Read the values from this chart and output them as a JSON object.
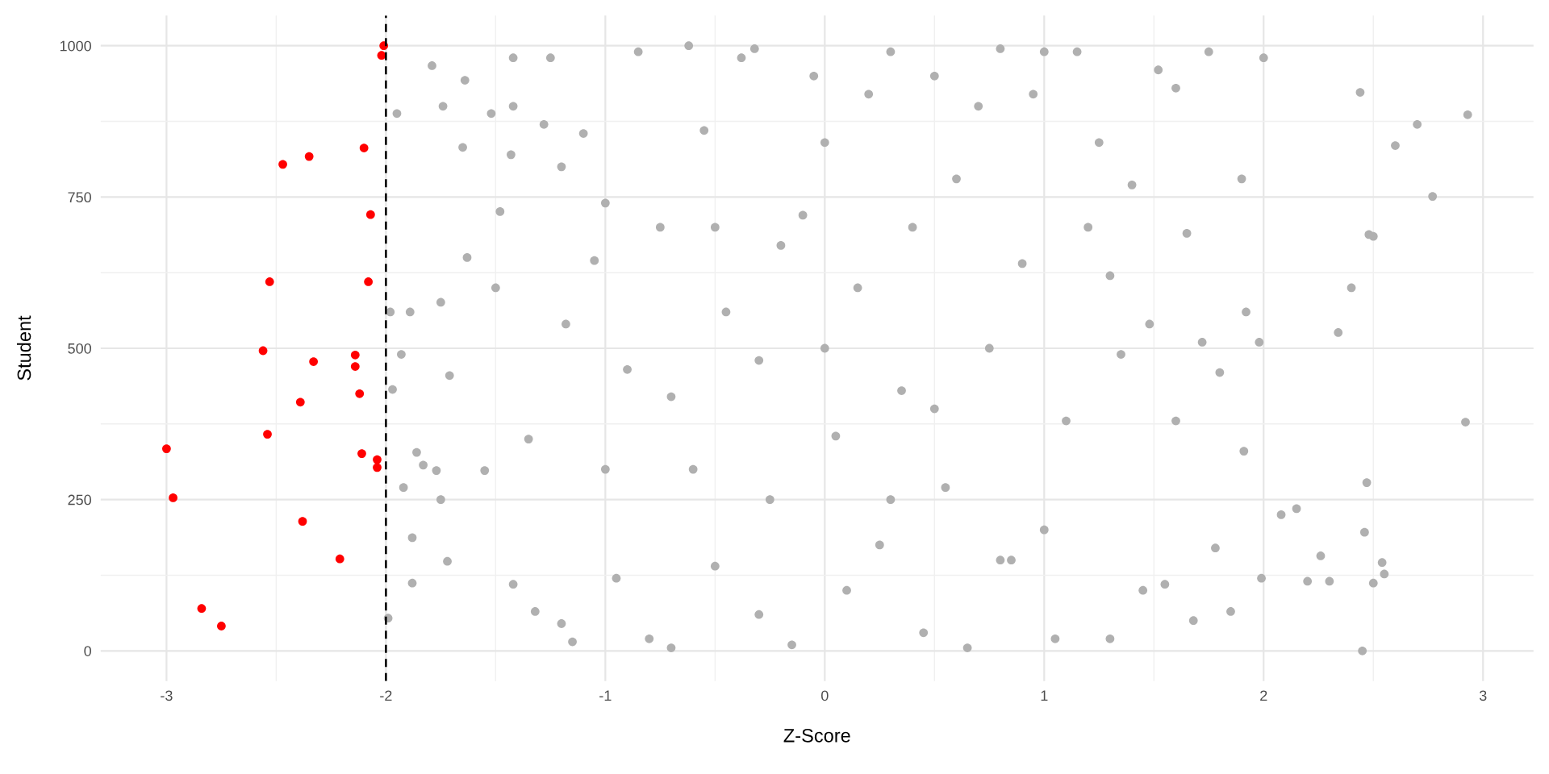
{
  "chart_data": {
    "type": "scatter",
    "xlabel": "Z-Score",
    "ylabel": "Student",
    "xlim": [
      -3.3,
      3.23
    ],
    "ylim": [
      -50,
      1050
    ],
    "xticks": [
      -3,
      -2,
      -1,
      0,
      1,
      2,
      3
    ],
    "yticks": [
      0,
      250,
      500,
      750,
      1000
    ],
    "grid": true,
    "marker": "circle",
    "legend": false,
    "ref_lines": [
      {
        "axis": "x",
        "value": -2,
        "color": "#000000",
        "line_style": "dashed"
      }
    ],
    "series": [
      {
        "color": "#b0b0b0",
        "x": [
          -1.98,
          -1.97,
          -1.99,
          -1.95,
          -1.93,
          -1.92,
          -1.89,
          -1.88,
          -1.88,
          -1.86,
          -1.83,
          -1.79,
          -1.77,
          -1.75,
          -1.74,
          -1.75,
          -1.72,
          -1.71,
          -1.65,
          -1.64,
          -1.63,
          -1.55,
          -1.52,
          -1.5,
          -1.48,
          -1.42,
          -1.42,
          -1.43,
          -1.42,
          -1.35,
          -1.32,
          -1.28,
          -1.25,
          -1.2,
          -1.18,
          -1.15,
          -1.1,
          -1.05,
          -1.0,
          -0.95,
          -0.9,
          -0.85,
          -0.8,
          -0.75,
          -0.7,
          -0.62,
          -0.6,
          -0.55,
          -0.5,
          -0.45,
          -0.38,
          -0.32,
          -0.3,
          -0.25,
          -0.2,
          -0.15,
          -0.1,
          -0.05,
          0.0,
          0.05,
          0.1,
          0.15,
          0.2,
          0.25,
          0.3,
          0.35,
          0.4,
          0.45,
          0.5,
          0.55,
          0.6,
          0.65,
          0.7,
          0.75,
          0.8,
          0.85,
          0.9,
          0.95,
          1.0,
          1.05,
          1.1,
          1.15,
          1.2,
          1.25,
          1.3,
          1.35,
          1.4,
          1.45,
          1.48,
          1.52,
          1.55,
          1.6,
          1.65,
          1.68,
          1.72,
          1.75,
          1.78,
          1.8,
          1.85,
          1.9,
          1.91,
          1.92,
          1.98,
          1.99,
          2.0,
          2.08,
          2.15,
          2.2,
          2.26,
          2.3,
          2.34,
          2.4,
          2.44,
          2.45,
          2.46,
          2.47,
          2.48,
          2.5,
          2.5,
          2.54,
          2.55,
          2.6,
          2.7,
          2.77,
          2.92,
          2.93,
          1.0,
          -0.5,
          0.5,
          -1.0,
          0.0,
          1.3,
          -0.7,
          0.8,
          -1.2,
          1.6,
          -0.3,
          0.3
        ],
        "values": [
          560,
          432,
          54,
          888,
          490,
          270,
          560,
          187,
          112,
          328,
          307,
          967,
          298,
          576,
          900,
          250,
          148,
          455,
          832,
          943,
          650,
          298,
          888,
          600,
          726,
          980,
          900,
          820,
          110,
          350,
          65,
          870,
          980,
          45,
          540,
          15,
          855,
          645,
          740,
          120,
          465,
          990,
          20,
          700,
          5,
          1000,
          300,
          860,
          140,
          560,
          980,
          995,
          480,
          250,
          670,
          10,
          720,
          950,
          840,
          355,
          100,
          600,
          920,
          175,
          990,
          430,
          700,
          30,
          950,
          270,
          780,
          5,
          900,
          500,
          995,
          150,
          640,
          920,
          990,
          20,
          380,
          990,
          700,
          840,
          20,
          490,
          770,
          100,
          540,
          960,
          110,
          380,
          690,
          50,
          510,
          990,
          170,
          460,
          65,
          780,
          330,
          560,
          510,
          120,
          980,
          225,
          235,
          115,
          157,
          115,
          526,
          600,
          923,
          0,
          196,
          278,
          688,
          685,
          112,
          146,
          127,
          835,
          870,
          751,
          378,
          886,
          200,
          700,
          400,
          300,
          500,
          620,
          420,
          150,
          800,
          930,
          60,
          250
        ]
      },
      {
        "color": "#ff0000",
        "x": [
          -2.01,
          -2.02,
          -2.47,
          -2.35,
          -2.1,
          -2.07,
          -2.53,
          -2.08,
          -2.56,
          -2.33,
          -2.14,
          -2.14,
          -2.12,
          -2.39,
          -2.54,
          -3.0,
          -2.11,
          -2.04,
          -2.04,
          -2.97,
          -2.38,
          -2.21,
          -2.84,
          -2.75
        ],
        "values": [
          1000,
          984,
          804,
          817,
          831,
          721,
          610,
          610,
          496,
          478,
          489,
          470,
          425,
          411,
          358,
          334,
          326,
          316,
          303,
          253,
          214,
          152,
          70,
          41
        ]
      }
    ]
  }
}
